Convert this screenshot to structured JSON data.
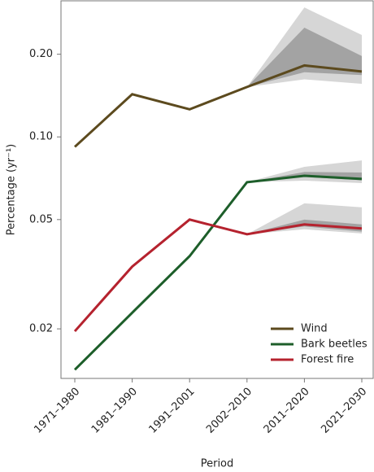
{
  "chart_data": {
    "type": "line",
    "x_label": "Period",
    "y_label": "Percentage (yr⁻¹)",
    "categories": [
      "1971–1980",
      "1981–1990",
      "1991–2001",
      "2002–2010",
      "2011–2020",
      "2021–2030"
    ],
    "log_y": true,
    "ylim": [
      0.0132,
      0.313
    ],
    "yticks": [
      {
        "value": 0.2,
        "label": "0.20"
      },
      {
        "value": 0.1,
        "label": "0.10"
      },
      0.05,
      0.02
    ],
    "legend": "lower right",
    "series": [
      {
        "name": "Wind",
        "color": "#5c4a1e",
        "values": [
          0.092,
          0.143,
          0.126,
          0.152,
          0.182,
          0.173
        ],
        "bands": [
          {
            "color": "#d6d6d6",
            "lower": [
              null,
              null,
              null,
              0.152,
              0.162,
              0.156
            ],
            "upper": [
              null,
              null,
              null,
              0.152,
              0.296,
              0.235
            ]
          },
          {
            "color": "#a3a3a3",
            "lower": [
              null,
              null,
              null,
              0.152,
              0.172,
              0.168
            ],
            "upper": [
              null,
              null,
              null,
              0.152,
              0.25,
              0.197
            ]
          }
        ]
      },
      {
        "name": "Bark beetles",
        "color": "#1d5e2a",
        "values": [
          0.0142,
          0.0229,
          0.0368,
          0.0684,
          0.0722,
          0.0703
        ],
        "bands": [
          {
            "color": "#d6d6d6",
            "lower": [
              null,
              null,
              null,
              0.0684,
              0.0693,
              0.0679
            ],
            "upper": [
              null,
              null,
              null,
              0.0684,
              0.0778,
              0.0821
            ]
          },
          {
            "color": "#a3a3a3",
            "lower": [
              null,
              null,
              null,
              0.0684,
              0.0715,
              0.0695
            ],
            "upper": [
              null,
              null,
              null,
              0.0684,
              0.0745,
              0.0742
            ]
          }
        ]
      },
      {
        "name": "Forest fire",
        "color": "#b5222e",
        "values": [
          0.0196,
          0.0337,
          0.05,
          0.0442,
          0.048,
          0.0464
        ],
        "bands": [
          {
            "color": "#d6d6d6",
            "lower": [
              null,
              null,
              null,
              0.0442,
              0.0461,
              0.0445
            ],
            "upper": [
              null,
              null,
              null,
              0.0442,
              0.0573,
              0.0554
            ]
          },
          {
            "color": "#a3a3a3",
            "lower": [
              null,
              null,
              null,
              0.0442,
              0.0472,
              0.0452
            ],
            "upper": [
              null,
              null,
              null,
              0.0442,
              0.05,
              0.048
            ]
          }
        ]
      }
    ]
  }
}
